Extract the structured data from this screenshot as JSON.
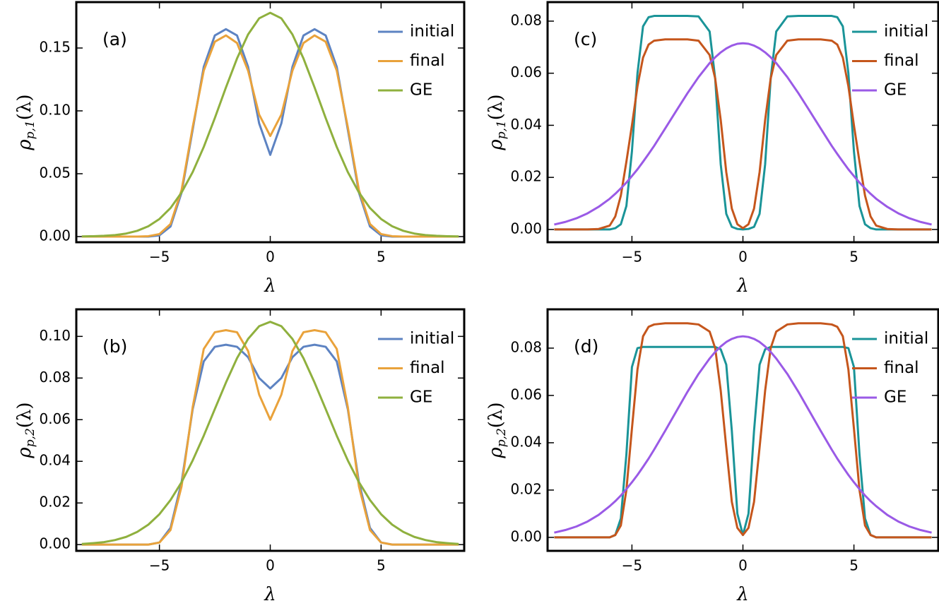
{
  "chart_data": [
    {
      "type": "line",
      "annotation": "(a)",
      "xlabel": "λ",
      "ylabel": {
        "base": "ρ",
        "subscript": "p,1",
        "argument": "(λ)"
      },
      "x": [
        -8.5,
        -8,
        -7.5,
        -7,
        -6.5,
        -6,
        -5.5,
        -5,
        -4.5,
        -4,
        -3.5,
        -3,
        -2.5,
        -2,
        -1.5,
        -1,
        -0.5,
        0,
        0.5,
        1,
        1.5,
        2,
        2.5,
        3,
        3.5,
        4,
        4.5,
        5,
        5.5,
        6,
        6.5,
        7,
        7.5,
        8,
        8.5
      ],
      "xlim": [
        -8.75,
        8.75
      ],
      "ylim": [
        -0.0045,
        0.1865
      ],
      "xticks": [
        {
          "value": -5,
          "label": "−5"
        },
        0,
        5
      ],
      "yticks": [
        {
          "value": 0,
          "label": "0.00"
        },
        {
          "value": 0.05,
          "label": "0.05"
        },
        {
          "value": 0.1,
          "label": "0.10"
        },
        {
          "value": 0.15,
          "label": "0.15"
        }
      ],
      "legend": "upper right",
      "series": [
        {
          "name": "initial",
          "color": "#5d83c2",
          "values": [
            0,
            0,
            0,
            0,
            0,
            0,
            0,
            0.001,
            0.008,
            0.035,
            0.085,
            0.135,
            0.16,
            0.165,
            0.16,
            0.135,
            0.09,
            0.065,
            0.09,
            0.135,
            0.16,
            0.165,
            0.16,
            0.135,
            0.085,
            0.035,
            0.008,
            0.001,
            0,
            0,
            0,
            0,
            0,
            0,
            0
          ]
        },
        {
          "name": "final",
          "color": "#e9a23b",
          "values": [
            0,
            0,
            0,
            0,
            0,
            0,
            0.0003,
            0.002,
            0.01,
            0.037,
            0.087,
            0.132,
            0.155,
            0.16,
            0.154,
            0.132,
            0.097,
            0.08,
            0.097,
            0.132,
            0.154,
            0.16,
            0.155,
            0.132,
            0.087,
            0.037,
            0.01,
            0.002,
            0.0003,
            0,
            0,
            0,
            0,
            0,
            0
          ]
        },
        {
          "name": "GE",
          "color": "#8fb03e",
          "values": [
            0.0001,
            0.0003,
            0.0006,
            0.0012,
            0.0024,
            0.0046,
            0.0082,
            0.014,
            0.0227,
            0.0351,
            0.0513,
            0.0713,
            0.0943,
            0.1186,
            0.1416,
            0.1608,
            0.1736,
            0.178,
            0.1736,
            0.1608,
            0.1416,
            0.1186,
            0.0943,
            0.0713,
            0.0513,
            0.0351,
            0.0227,
            0.014,
            0.0082,
            0.0046,
            0.0024,
            0.0012,
            0.0006,
            0.0003,
            0.0001
          ]
        }
      ]
    },
    {
      "type": "line",
      "annotation": "(b)",
      "xlabel": "λ",
      "ylabel": {
        "base": "ρ",
        "subscript": "p,2",
        "argument": "(λ)"
      },
      "x": [
        -8.5,
        -8,
        -7.5,
        -7,
        -6.5,
        -6,
        -5.5,
        -5,
        -4.5,
        -4,
        -3.5,
        -3,
        -2.5,
        -2,
        -1.5,
        -1,
        -0.5,
        0,
        0.5,
        1,
        1.5,
        2,
        2.5,
        3,
        3.5,
        4,
        4.5,
        5,
        5.5,
        6,
        6.5,
        7,
        7.5,
        8,
        8.5
      ],
      "xlim": [
        -8.75,
        8.75
      ],
      "ylim": [
        -0.003,
        0.113
      ],
      "xticks": [
        {
          "value": -5,
          "label": "−5"
        },
        0,
        5
      ],
      "yticks": [
        {
          "value": 0,
          "label": "0.00"
        },
        {
          "value": 0.02,
          "label": "0.02"
        },
        {
          "value": 0.04,
          "label": "0.04"
        },
        {
          "value": 0.06,
          "label": "0.06"
        },
        {
          "value": 0.08,
          "label": "0.08"
        },
        {
          "value": 0.1,
          "label": "0.10"
        }
      ],
      "legend": "upper right",
      "series": [
        {
          "name": "initial",
          "color": "#5d83c2",
          "values": [
            0,
            0,
            0,
            0,
            0,
            0,
            0,
            0.001,
            0.008,
            0.03,
            0.065,
            0.088,
            0.095,
            0.096,
            0.095,
            0.09,
            0.08,
            0.075,
            0.08,
            0.09,
            0.095,
            0.096,
            0.095,
            0.088,
            0.065,
            0.03,
            0.008,
            0.001,
            0,
            0,
            0,
            0,
            0,
            0,
            0
          ]
        },
        {
          "name": "final",
          "color": "#e9a23b",
          "values": [
            0,
            0,
            0,
            0,
            0,
            0,
            0,
            0.001,
            0.007,
            0.028,
            0.066,
            0.094,
            0.102,
            0.103,
            0.102,
            0.093,
            0.072,
            0.06,
            0.072,
            0.093,
            0.102,
            0.103,
            0.102,
            0.094,
            0.066,
            0.028,
            0.007,
            0.001,
            0,
            0,
            0,
            0,
            0,
            0,
            0
          ]
        },
        {
          "name": "GE",
          "color": "#8fb03e",
          "values": [
            0.0003,
            0.0007,
            0.0012,
            0.0022,
            0.0037,
            0.0061,
            0.0096,
            0.0146,
            0.0214,
            0.03,
            0.0404,
            0.0523,
            0.0651,
            0.0778,
            0.0895,
            0.0988,
            0.1049,
            0.107,
            0.1049,
            0.0988,
            0.0895,
            0.0778,
            0.0651,
            0.0523,
            0.0404,
            0.03,
            0.0214,
            0.0146,
            0.0096,
            0.0061,
            0.0037,
            0.0022,
            0.0012,
            0.0007,
            0.0003
          ]
        }
      ]
    },
    {
      "type": "line",
      "annotation": "(c)",
      "xlabel": "λ",
      "ylabel": {
        "base": "ρ",
        "subscript": "p,1",
        "argument": "(λ)"
      },
      "x": [
        -8.5,
        -8,
        -7.5,
        -7,
        -6.5,
        -6,
        -5.75,
        -5.5,
        -5.25,
        -5,
        -4.75,
        -4.5,
        -4.25,
        -4,
        -3.5,
        -3,
        -2.5,
        -2,
        -1.5,
        -1.25,
        -1,
        -0.75,
        -0.5,
        -0.25,
        0,
        0.25,
        0.5,
        0.75,
        1,
        1.25,
        1.5,
        2,
        2.5,
        3,
        3.5,
        4,
        4.25,
        4.5,
        4.75,
        5,
        5.25,
        5.5,
        5.75,
        6,
        6.5,
        7,
        7.5,
        8,
        8.5
      ],
      "xlim": [
        -8.8,
        8.8
      ],
      "ylim": [
        -0.0049,
        0.0873
      ],
      "xticks": [
        {
          "value": -5,
          "label": "−5"
        },
        0,
        5
      ],
      "yticks": [
        {
          "value": 0,
          "label": "0.00"
        },
        {
          "value": 0.02,
          "label": "0.02"
        },
        {
          "value": 0.04,
          "label": "0.04"
        },
        {
          "value": 0.06,
          "label": "0.06"
        },
        {
          "value": 0.08,
          "label": "0.08"
        }
      ],
      "legend": "upper right",
      "series": [
        {
          "name": "initial",
          "color": "#1a9498",
          "values": [
            0,
            0,
            0,
            0,
            0,
            0,
            0.0005,
            0.002,
            0.009,
            0.03,
            0.06,
            0.078,
            0.0815,
            0.082,
            0.082,
            0.082,
            0.082,
            0.0818,
            0.076,
            0.058,
            0.025,
            0.006,
            0.001,
            0.0002,
            0,
            0.0002,
            0.001,
            0.006,
            0.025,
            0.058,
            0.076,
            0.0818,
            0.082,
            0.082,
            0.082,
            0.082,
            0.0815,
            0.078,
            0.06,
            0.03,
            0.009,
            0.002,
            0.0005,
            0,
            0,
            0,
            0,
            0,
            0
          ]
        },
        {
          "name": "final",
          "color": "#c5561c",
          "values": [
            0,
            0,
            0,
            0,
            0.0002,
            0.0015,
            0.005,
            0.013,
            0.026,
            0.04,
            0.055,
            0.066,
            0.071,
            0.0725,
            0.073,
            0.073,
            0.073,
            0.0725,
            0.067,
            0.058,
            0.042,
            0.022,
            0.008,
            0.002,
            0.0005,
            0.002,
            0.008,
            0.022,
            0.042,
            0.058,
            0.067,
            0.0725,
            0.073,
            0.073,
            0.073,
            0.0725,
            0.071,
            0.066,
            0.055,
            0.04,
            0.026,
            0.013,
            0.005,
            0.0015,
            0.0002,
            0,
            0,
            0,
            0
          ]
        },
        {
          "name": "GE",
          "color": "#9a5ae6",
          "values": [
            0.0019,
            0.0029,
            0.0043,
            0.0062,
            0.0087,
            0.0118,
            0.0137,
            0.0158,
            0.018,
            0.0205,
            0.0231,
            0.026,
            0.029,
            0.0321,
            0.0388,
            0.0456,
            0.0523,
            0.0585,
            0.0639,
            0.0661,
            0.068,
            0.0695,
            0.0706,
            0.0713,
            0.0715,
            0.0713,
            0.0706,
            0.0695,
            0.068,
            0.0661,
            0.0639,
            0.0585,
            0.0523,
            0.0456,
            0.0388,
            0.0321,
            0.029,
            0.026,
            0.0231,
            0.0205,
            0.018,
            0.0158,
            0.0137,
            0.0118,
            0.0087,
            0.0062,
            0.0043,
            0.0029,
            0.0019
          ]
        }
      ]
    },
    {
      "type": "line",
      "annotation": "(d)",
      "xlabel": "λ",
      "ylabel": {
        "base": "ρ",
        "subscript": "p,2",
        "argument": "(λ)"
      },
      "x": [
        -8.5,
        -8,
        -7.5,
        -7,
        -6.5,
        -6,
        -5.75,
        -5.5,
        -5.25,
        -5,
        -4.75,
        -4.5,
        -4.25,
        -4,
        -3.5,
        -3,
        -2.5,
        -2,
        -1.5,
        -1.25,
        -1,
        -0.75,
        -0.5,
        -0.25,
        0,
        0.25,
        0.5,
        0.75,
        1,
        1.25,
        1.5,
        2,
        2.5,
        3,
        3.5,
        4,
        4.25,
        4.5,
        4.75,
        5,
        5.25,
        5.5,
        5.75,
        6,
        6.5,
        7,
        7.5,
        8,
        8.5
      ],
      "xlim": [
        -8.8,
        8.8
      ],
      "ylim": [
        -0.0057,
        0.0964
      ],
      "xticks": [
        {
          "value": -5,
          "label": "−5"
        },
        0,
        5
      ],
      "yticks": [
        {
          "value": 0,
          "label": "0.00"
        },
        {
          "value": 0.02,
          "label": "0.02"
        },
        {
          "value": 0.04,
          "label": "0.04"
        },
        {
          "value": 0.06,
          "label": "0.06"
        },
        {
          "value": 0.08,
          "label": "0.08"
        }
      ],
      "legend": "upper right",
      "series": [
        {
          "name": "initial",
          "color": "#1a9498",
          "values": [
            0,
            0,
            0,
            0,
            0,
            0,
            0.001,
            0.008,
            0.035,
            0.072,
            0.08,
            0.0805,
            0.0805,
            0.0805,
            0.0805,
            0.0805,
            0.0805,
            0.0805,
            0.0805,
            0.0805,
            0.0795,
            0.073,
            0.045,
            0.01,
            0.001,
            0.01,
            0.045,
            0.073,
            0.0795,
            0.0805,
            0.0805,
            0.0805,
            0.0805,
            0.0805,
            0.0805,
            0.0805,
            0.0805,
            0.0805,
            0.08,
            0.072,
            0.035,
            0.008,
            0.001,
            0,
            0,
            0,
            0,
            0,
            0
          ]
        },
        {
          "name": "final",
          "color": "#c5561c",
          "values": [
            0,
            0,
            0,
            0,
            0,
            0,
            0.001,
            0.005,
            0.02,
            0.046,
            0.071,
            0.085,
            0.089,
            0.09,
            0.0905,
            0.0905,
            0.0905,
            0.09,
            0.087,
            0.08,
            0.062,
            0.038,
            0.015,
            0.004,
            0.001,
            0.004,
            0.015,
            0.038,
            0.062,
            0.08,
            0.087,
            0.09,
            0.0905,
            0.0905,
            0.0905,
            0.09,
            0.089,
            0.085,
            0.071,
            0.046,
            0.02,
            0.005,
            0.001,
            0,
            0,
            0,
            0,
            0,
            0
          ]
        },
        {
          "name": "GE",
          "color": "#9a5ae6",
          "values": [
            0.002,
            0.0031,
            0.0046,
            0.0067,
            0.0095,
            0.0132,
            0.0153,
            0.0177,
            0.0204,
            0.0233,
            0.0264,
            0.0298,
            0.0333,
            0.0371,
            0.0451,
            0.0533,
            0.0615,
            0.0691,
            0.0756,
            0.0784,
            0.0807,
            0.0826,
            0.0839,
            0.0847,
            0.085,
            0.0847,
            0.0839,
            0.0826,
            0.0807,
            0.0784,
            0.0756,
            0.0691,
            0.0615,
            0.0533,
            0.0451,
            0.0371,
            0.0333,
            0.0298,
            0.0264,
            0.0233,
            0.0204,
            0.0177,
            0.0153,
            0.0132,
            0.0095,
            0.0067,
            0.0046,
            0.0031,
            0.002
          ]
        }
      ]
    }
  ]
}
